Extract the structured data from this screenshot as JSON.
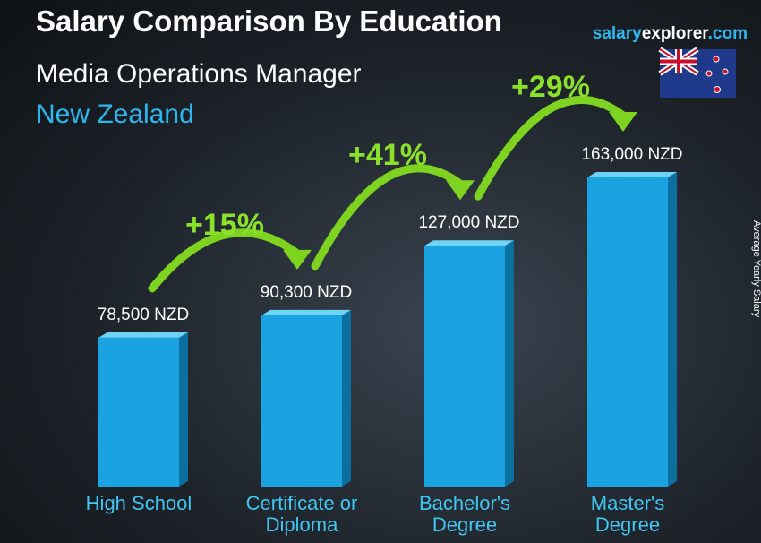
{
  "chart_data": {
    "type": "bar3d",
    "title": "Salary Comparison By Education",
    "subtitle": "Media Operations Manager",
    "location": "New Zealand",
    "brand": [
      "salary",
      "explorer",
      ".com"
    ],
    "axis_label": "Average Yearly Salary",
    "categories": [
      "High School",
      "Certificate or Diploma",
      "Bachelor's Degree",
      "Master's Degree"
    ],
    "values": [
      78500,
      90300,
      127000,
      163000
    ],
    "value_labels": [
      "78,500 NZD",
      "90,300 NZD",
      "127,000 NZD",
      "163,000 NZD"
    ],
    "changes": [
      "+15%",
      "+41%",
      "+29%"
    ],
    "color": "#1aa3e0"
  }
}
